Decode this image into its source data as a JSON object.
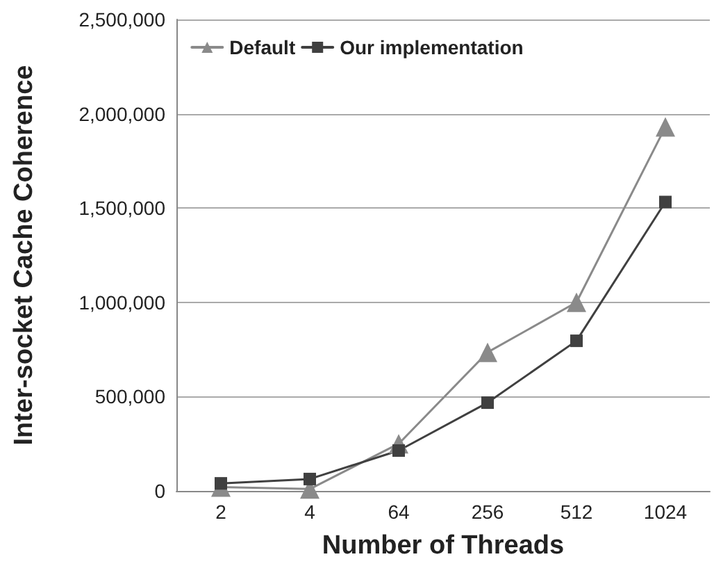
{
  "chart_data": {
    "type": "line",
    "xlabel": "Number of Threads",
    "ylabel": "Inter-socket Cache Coherence",
    "categories": [
      "2",
      "4",
      "64",
      "256",
      "512",
      "1024"
    ],
    "series": [
      {
        "name": "Default",
        "color": "#8a8a8a",
        "marker": "triangle",
        "values": [
          20000,
          10000,
          250000,
          735000,
          1000000,
          1930000
        ]
      },
      {
        "name": "Our implementation",
        "color": "#404040",
        "marker": "square",
        "values": [
          40000,
          63000,
          214000,
          468000,
          796000,
          1532000
        ]
      }
    ],
    "ylim": [
      0,
      2500000
    ],
    "yticks": [
      0,
      {
        "value": 500000,
        "label": "500,000"
      },
      {
        "value": 1000000,
        "label": "1,000,000"
      },
      {
        "value": 1500000,
        "label": "1,500,000"
      },
      {
        "value": 2000000,
        "label": "2,000,000"
      },
      {
        "value": 2500000,
        "label": "2,500,000"
      }
    ],
    "grid": "y",
    "legend": "top",
    "line_style": "solid"
  }
}
